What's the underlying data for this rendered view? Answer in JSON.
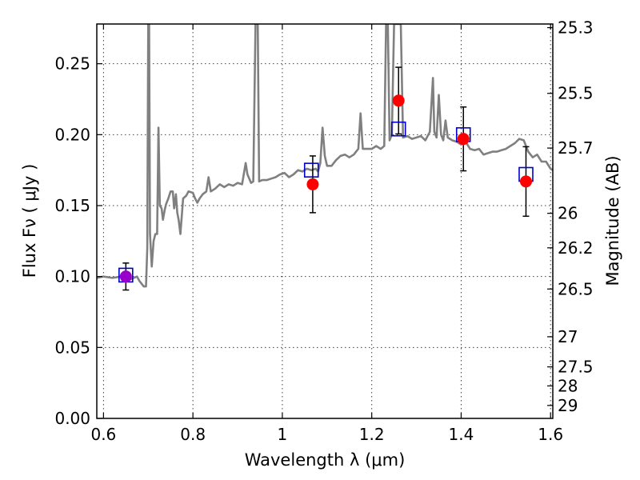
{
  "chart_data": {
    "type": "scatter",
    "title": "",
    "xlabel": "Wavelength  λ (μm)",
    "ylabel": "Flux  Fν  ( μJy )",
    "ylabel_right": "Magnitude (AB)",
    "xlim": [
      0.585,
      1.605
    ],
    "ylim": [
      0.0,
      0.278
    ],
    "grid": true,
    "x_ticks": [
      0.6,
      0.8,
      1.0,
      1.2,
      1.4,
      1.6
    ],
    "x_tick_labels": [
      "0.6",
      "0.8",
      "1",
      "1.2",
      "1.4",
      "1.6"
    ],
    "y_ticks": [
      0.0,
      0.05,
      0.1,
      0.15,
      0.2,
      0.25
    ],
    "y_tick_labels": [
      "0.00",
      "0.05",
      "0.10",
      "0.15",
      "0.20",
      "0.25"
    ],
    "right_ticks": [
      {
        "label": "25.3",
        "mag": 25.3
      },
      {
        "label": "25.5",
        "mag": 25.5
      },
      {
        "label": "25.7",
        "mag": 25.7
      },
      {
        "label": "26",
        "mag": 26.0
      },
      {
        "label": "26.2",
        "mag": 26.2
      },
      {
        "label": "26.5",
        "mag": 26.5
      },
      {
        "label": "27",
        "mag": 27.0
      },
      {
        "label": "27.5",
        "mag": 27.5
      },
      {
        "label": "28",
        "mag": 28.0
      },
      {
        "label": "29",
        "mag": 29.0
      }
    ],
    "series": [
      {
        "kind": "spectrum",
        "color": "#808080",
        "points": [
          [
            0.585,
            0.099
          ],
          [
            0.6,
            0.1
          ],
          [
            0.62,
            0.099
          ],
          [
            0.64,
            0.1
          ],
          [
            0.66,
            0.098
          ],
          [
            0.675,
            0.1
          ],
          [
            0.68,
            0.097
          ],
          [
            0.69,
            0.093
          ],
          [
            0.695,
            0.093
          ],
          [
            0.698,
            0.12
          ],
          [
            0.7,
            0.278
          ],
          [
            0.702,
            0.278
          ],
          [
            0.704,
            0.13
          ],
          [
            0.708,
            0.107
          ],
          [
            0.712,
            0.125
          ],
          [
            0.716,
            0.13
          ],
          [
            0.72,
            0.13
          ],
          [
            0.723,
            0.205
          ],
          [
            0.726,
            0.15
          ],
          [
            0.73,
            0.148
          ],
          [
            0.733,
            0.14
          ],
          [
            0.737,
            0.147
          ],
          [
            0.74,
            0.151
          ],
          [
            0.745,
            0.155
          ],
          [
            0.75,
            0.16
          ],
          [
            0.755,
            0.16
          ],
          [
            0.758,
            0.148
          ],
          [
            0.762,
            0.158
          ],
          [
            0.765,
            0.145
          ],
          [
            0.768,
            0.14
          ],
          [
            0.772,
            0.13
          ],
          [
            0.778,
            0.155
          ],
          [
            0.785,
            0.157
          ],
          [
            0.79,
            0.16
          ],
          [
            0.8,
            0.159
          ],
          [
            0.805,
            0.155
          ],
          [
            0.81,
            0.152
          ],
          [
            0.815,
            0.155
          ],
          [
            0.822,
            0.158
          ],
          [
            0.83,
            0.16
          ],
          [
            0.835,
            0.17
          ],
          [
            0.84,
            0.16
          ],
          [
            0.85,
            0.162
          ],
          [
            0.86,
            0.165
          ],
          [
            0.87,
            0.163
          ],
          [
            0.88,
            0.165
          ],
          [
            0.89,
            0.164
          ],
          [
            0.9,
            0.166
          ],
          [
            0.91,
            0.165
          ],
          [
            0.918,
            0.18
          ],
          [
            0.922,
            0.172
          ],
          [
            0.93,
            0.166
          ],
          [
            0.935,
            0.167
          ],
          [
            0.94,
            0.278
          ],
          [
            0.945,
            0.278
          ],
          [
            0.948,
            0.167
          ],
          [
            0.955,
            0.168
          ],
          [
            0.965,
            0.168
          ],
          [
            0.975,
            0.169
          ],
          [
            0.985,
            0.17
          ],
          [
            0.995,
            0.172
          ],
          [
            1.005,
            0.173
          ],
          [
            1.015,
            0.17
          ],
          [
            1.025,
            0.172
          ],
          [
            1.035,
            0.175
          ],
          [
            1.045,
            0.174
          ],
          [
            1.055,
            0.176
          ],
          [
            1.065,
            0.175
          ],
          [
            1.075,
            0.176
          ],
          [
            1.08,
            0.174
          ],
          [
            1.085,
            0.18
          ],
          [
            1.09,
            0.205
          ],
          [
            1.095,
            0.185
          ],
          [
            1.1,
            0.178
          ],
          [
            1.11,
            0.178
          ],
          [
            1.12,
            0.182
          ],
          [
            1.13,
            0.185
          ],
          [
            1.14,
            0.186
          ],
          [
            1.15,
            0.184
          ],
          [
            1.16,
            0.186
          ],
          [
            1.165,
            0.188
          ],
          [
            1.17,
            0.19
          ],
          [
            1.175,
            0.215
          ],
          [
            1.18,
            0.19
          ],
          [
            1.19,
            0.19
          ],
          [
            1.2,
            0.19
          ],
          [
            1.21,
            0.192
          ],
          [
            1.22,
            0.19
          ],
          [
            1.228,
            0.192
          ],
          [
            1.232,
            0.278
          ],
          [
            1.236,
            0.278
          ],
          [
            1.24,
            0.196
          ],
          [
            1.245,
            0.2
          ],
          [
            1.25,
            0.278
          ],
          [
            1.255,
            0.278
          ],
          [
            1.26,
            0.278
          ],
          [
            1.265,
            0.278
          ],
          [
            1.27,
            0.198
          ],
          [
            1.28,
            0.199
          ],
          [
            1.29,
            0.197
          ],
          [
            1.3,
            0.198
          ],
          [
            1.31,
            0.199
          ],
          [
            1.32,
            0.196
          ],
          [
            1.33,
            0.202
          ],
          [
            1.337,
            0.24
          ],
          [
            1.34,
            0.202
          ],
          [
            1.345,
            0.198
          ],
          [
            1.35,
            0.228
          ],
          [
            1.355,
            0.2
          ],
          [
            1.36,
            0.196
          ],
          [
            1.365,
            0.21
          ],
          [
            1.37,
            0.198
          ],
          [
            1.38,
            0.196
          ],
          [
            1.39,
            0.195
          ],
          [
            1.4,
            0.193
          ],
          [
            1.41,
            0.195
          ],
          [
            1.42,
            0.19
          ],
          [
            1.43,
            0.189
          ],
          [
            1.44,
            0.19
          ],
          [
            1.45,
            0.186
          ],
          [
            1.46,
            0.187
          ],
          [
            1.47,
            0.188
          ],
          [
            1.48,
            0.188
          ],
          [
            1.49,
            0.189
          ],
          [
            1.5,
            0.19
          ],
          [
            1.51,
            0.192
          ],
          [
            1.52,
            0.194
          ],
          [
            1.53,
            0.197
          ],
          [
            1.54,
            0.196
          ],
          [
            1.55,
            0.188
          ],
          [
            1.56,
            0.184
          ],
          [
            1.57,
            0.186
          ],
          [
            1.58,
            0.181
          ],
          [
            1.59,
            0.181
          ],
          [
            1.6,
            0.176
          ],
          [
            1.605,
            0.175
          ]
        ]
      },
      {
        "kind": "model_points",
        "marker": "open-square",
        "color": "#0000cc",
        "x": [
          0.65,
          1.065,
          1.26,
          1.405,
          1.545
        ],
        "y": [
          0.101,
          0.175,
          0.204,
          0.2,
          0.172
        ]
      },
      {
        "kind": "observed_points",
        "marker": "filled-circle",
        "color": "#ff0000",
        "x": [
          0.65,
          1.068,
          1.26,
          1.405,
          1.545
        ],
        "y": [
          0.1,
          0.165,
          0.224,
          0.197,
          0.167
        ],
        "yerr": [
          0.0095,
          0.02,
          0.0235,
          0.0225,
          0.0245
        ],
        "first_color": "#9900cc"
      }
    ]
  }
}
